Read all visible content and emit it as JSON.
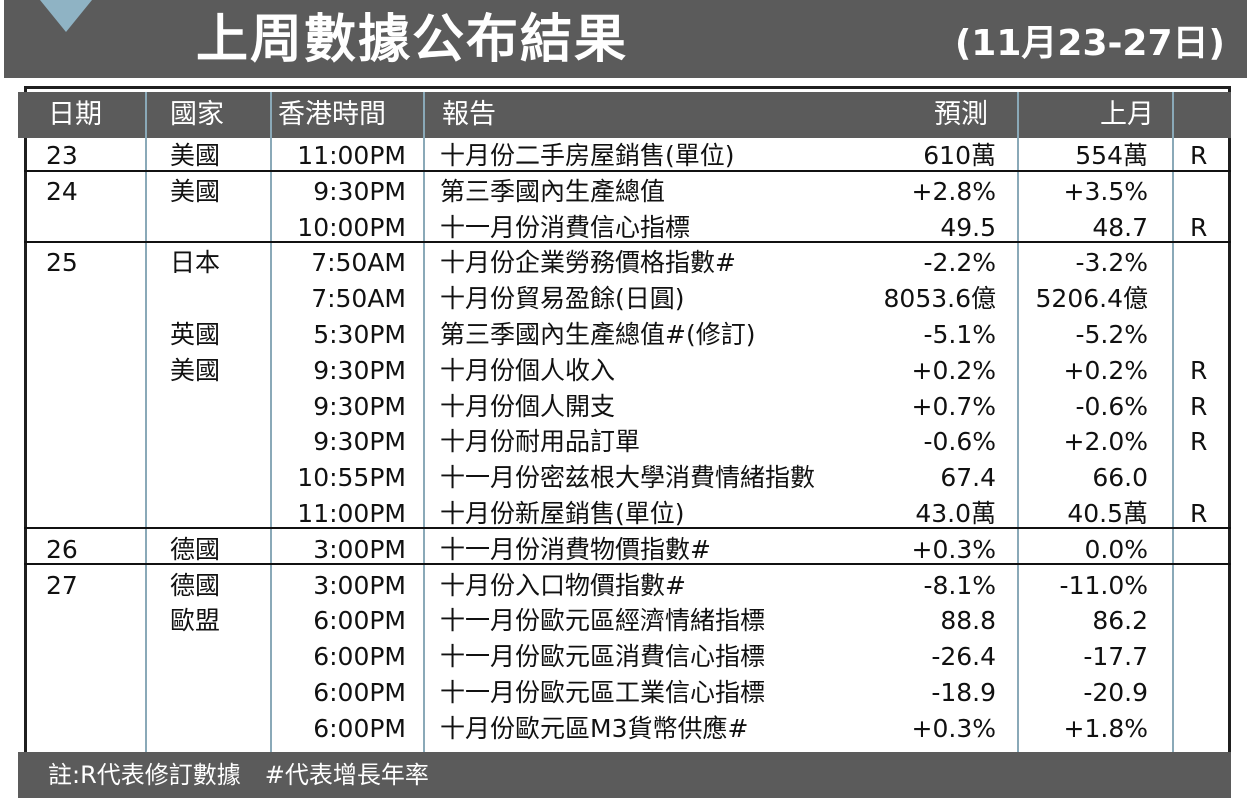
{
  "title": "上周數據公布結果",
  "date_range": "(11月23-27日)",
  "headers": {
    "date": "日期",
    "country": "國家",
    "time": "香港時間",
    "report": "報告",
    "forecast": "預測",
    "previous": "上月"
  },
  "rows": [
    {
      "date": "23",
      "country": "美國",
      "time": "11:00PM",
      "report": "十月份二手房屋銷售(單位)",
      "forecast": "610萬",
      "previous": "554萬",
      "revised": "R"
    },
    {
      "date": "24",
      "country": "美國",
      "time": "9:30PM",
      "report": "第三季國內生產總值",
      "forecast": "+2.8%",
      "previous": "+3.5%",
      "revised": ""
    },
    {
      "date": "",
      "country": "",
      "time": "10:00PM",
      "report": "十一月份消費信心指標",
      "forecast": "49.5",
      "previous": "48.7",
      "revised": "R"
    },
    {
      "date": "25",
      "country": "日本",
      "time": "7:50AM",
      "report": "十月份企業勞務價格指數#",
      "forecast": "-2.2%",
      "previous": "-3.2%",
      "revised": ""
    },
    {
      "date": "",
      "country": "",
      "time": "7:50AM",
      "report": "十月份貿易盈餘(日圓)",
      "forecast": "8053.6億",
      "previous": "5206.4億",
      "revised": ""
    },
    {
      "date": "",
      "country": "英國",
      "time": "5:30PM",
      "report": "第三季國內生產總值#(修訂)",
      "forecast": "-5.1%",
      "previous": "-5.2%",
      "revised": ""
    },
    {
      "date": "",
      "country": "美國",
      "time": "9:30PM",
      "report": "十月份個人收入",
      "forecast": "+0.2%",
      "previous": "+0.2%",
      "revised": "R"
    },
    {
      "date": "",
      "country": "",
      "time": "9:30PM",
      "report": "十月份個人開支",
      "forecast": "+0.7%",
      "previous": "-0.6%",
      "revised": "R"
    },
    {
      "date": "",
      "country": "",
      "time": "9:30PM",
      "report": "十月份耐用品訂單",
      "forecast": "-0.6%",
      "previous": "+2.0%",
      "revised": "R"
    },
    {
      "date": "",
      "country": "",
      "time": "10:55PM",
      "report": "十一月份密兹根大學消費情緒指數",
      "forecast": "67.4",
      "previous": "66.0",
      "revised": ""
    },
    {
      "date": "",
      "country": "",
      "time": "11:00PM",
      "report": "十月份新屋銷售(單位)",
      "forecast": "43.0萬",
      "previous": "40.5萬",
      "revised": "R"
    },
    {
      "date": "26",
      "country": "德國",
      "time": "3:00PM",
      "report": "十一月份消費物價指數#",
      "forecast": "+0.3%",
      "previous": "0.0%",
      "revised": ""
    },
    {
      "date": "27",
      "country": "德國",
      "time": "3:00PM",
      "report": "十月份入口物價指數#",
      "forecast": "-8.1%",
      "previous": "-11.0%",
      "revised": ""
    },
    {
      "date": "",
      "country": "歐盟",
      "time": "6:00PM",
      "report": "十一月份歐元區經濟情緒指標",
      "forecast": "88.8",
      "previous": "86.2",
      "revised": ""
    },
    {
      "date": "",
      "country": "",
      "time": "6:00PM",
      "report": "十一月份歐元區消費信心指標",
      "forecast": "-26.4",
      "previous": "-17.7",
      "revised": ""
    },
    {
      "date": "",
      "country": "",
      "time": "6:00PM",
      "report": "十一月份歐元區工業信心指標",
      "forecast": "-18.9",
      "previous": "-20.9",
      "revised": ""
    },
    {
      "date": "",
      "country": "",
      "time": "6:00PM",
      "report": "十月份歐元區M3貨幣供應#",
      "forecast": "+0.3%",
      "previous": "+1.8%",
      "revised": ""
    }
  ],
  "footnote": "註:R代表修訂數據　#代表增長年率"
}
